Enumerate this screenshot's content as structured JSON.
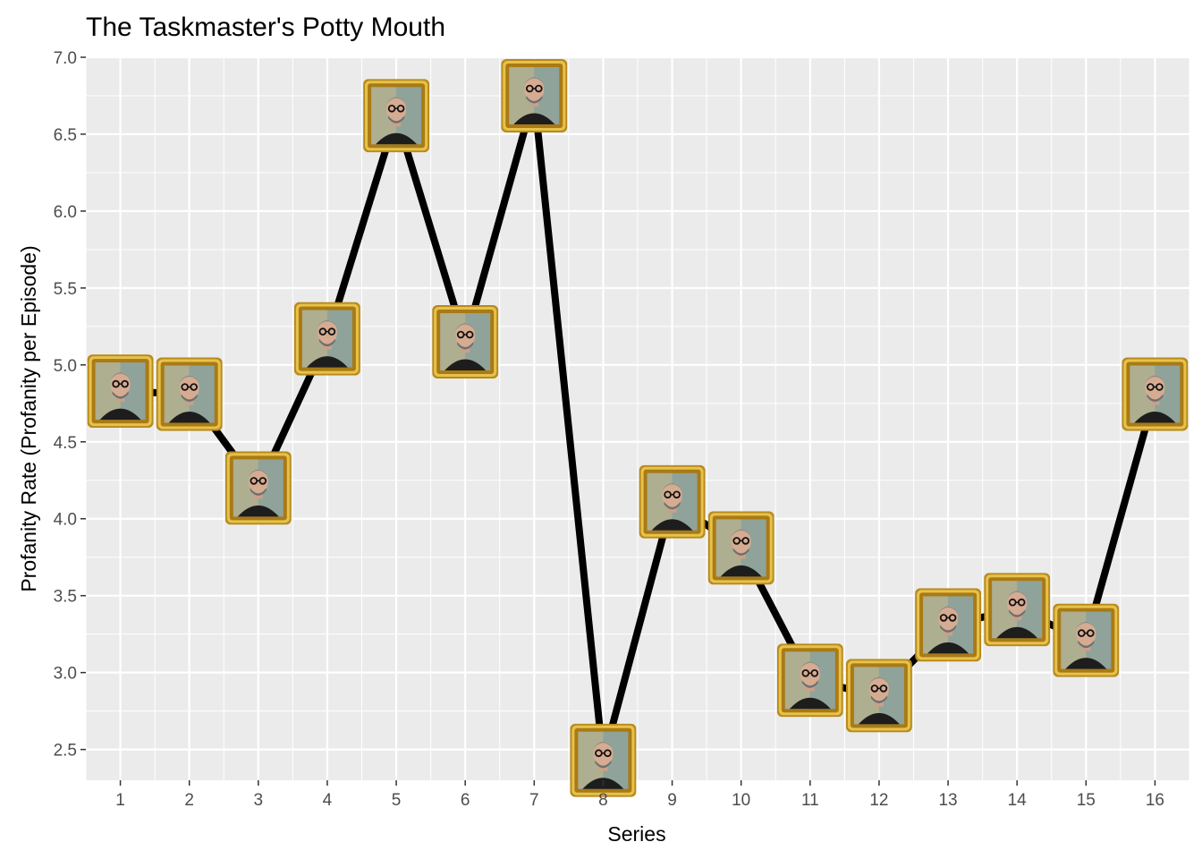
{
  "chart_data": {
    "type": "line",
    "title": "The Taskmaster's Potty Mouth",
    "xlabel": "Series",
    "ylabel": "Profanity Rate (Profanity per Episode)",
    "x": [
      1,
      2,
      3,
      4,
      5,
      6,
      7,
      8,
      9,
      10,
      11,
      12,
      13,
      14,
      15,
      16
    ],
    "series": [
      {
        "values": [
          4.83,
          4.81,
          4.2,
          5.17,
          6.62,
          5.15,
          6.75,
          2.43,
          4.11,
          3.81,
          2.95,
          2.85,
          3.31,
          3.41,
          3.21,
          4.81
        ]
      }
    ],
    "xlim": [
      0.5,
      16.5
    ],
    "ylim": [
      2.3,
      7.0
    ],
    "x_ticks": [
      "1",
      "2",
      "3",
      "4",
      "5",
      "6",
      "7",
      "8",
      "9",
      "10",
      "11",
      "12",
      "13",
      "14",
      "15",
      "16"
    ],
    "y_ticks": [
      "2.5",
      "3.0",
      "3.5",
      "4.0",
      "4.5",
      "5.0",
      "5.5",
      "6.0",
      "6.5",
      "7.0"
    ],
    "grid": true,
    "marker": "framed-portrait-icon",
    "colors": {
      "panel_background": "#ebebeb",
      "grid": "#ffffff",
      "line": "#000000",
      "frame": "#c9a227"
    }
  }
}
